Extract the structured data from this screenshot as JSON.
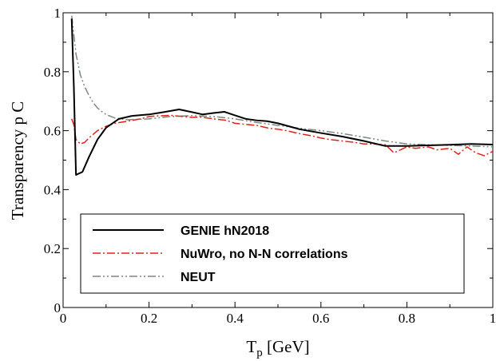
{
  "chart_data": {
    "type": "line",
    "xlabel_main": "T",
    "xlabel_sub": "p",
    "xlabel_unit": " [GeV]",
    "ylabel": "Transparency p C",
    "xlim": [
      0,
      1
    ],
    "ylim": [
      0,
      1
    ],
    "x_ticks": [
      "0",
      "0.2",
      "0.4",
      "0.6",
      "0.8",
      "1"
    ],
    "y_ticks": [
      "0",
      "0.2",
      "0.4",
      "0.6",
      "0.8",
      "1"
    ],
    "grid": false,
    "legend_position": "bottom-center",
    "series": [
      {
        "name": "GENIE hN2018",
        "color": "#000000",
        "style": "solid",
        "x": [
          0.02,
          0.025,
          0.03,
          0.045,
          0.06,
          0.08,
          0.1,
          0.13,
          0.16,
          0.2,
          0.23,
          0.27,
          0.3,
          0.325,
          0.35,
          0.375,
          0.4,
          0.425,
          0.45,
          0.475,
          0.5,
          0.55,
          0.6,
          0.65,
          0.7,
          0.75,
          0.8,
          0.85,
          0.9,
          0.95,
          1.0
        ],
        "y": [
          0.98,
          0.75,
          0.45,
          0.46,
          0.51,
          0.57,
          0.61,
          0.64,
          0.65,
          0.655,
          0.662,
          0.672,
          0.663,
          0.655,
          0.66,
          0.664,
          0.652,
          0.64,
          0.635,
          0.632,
          0.625,
          0.605,
          0.592,
          0.58,
          0.565,
          0.548,
          0.548,
          0.55,
          0.552,
          0.555,
          0.553
        ]
      },
      {
        "name": "NuWro, no N-N correlations",
        "color": "#e3211b",
        "style": "dashdot",
        "x": [
          0.02,
          0.025,
          0.03,
          0.04,
          0.05,
          0.06,
          0.08,
          0.1,
          0.12,
          0.15,
          0.18,
          0.2,
          0.22,
          0.25,
          0.28,
          0.3,
          0.32,
          0.35,
          0.38,
          0.4,
          0.42,
          0.45,
          0.48,
          0.5,
          0.52,
          0.55,
          0.58,
          0.6,
          0.62,
          0.65,
          0.68,
          0.7,
          0.72,
          0.75,
          0.77,
          0.8,
          0.82,
          0.85,
          0.87,
          0.9,
          0.92,
          0.94,
          0.96,
          0.98,
          1.0
        ],
        "y": [
          0.64,
          0.62,
          0.57,
          0.555,
          0.56,
          0.575,
          0.6,
          0.615,
          0.625,
          0.632,
          0.64,
          0.648,
          0.65,
          0.652,
          0.648,
          0.645,
          0.646,
          0.64,
          0.635,
          0.625,
          0.622,
          0.618,
          0.608,
          0.605,
          0.6,
          0.59,
          0.582,
          0.575,
          0.57,
          0.565,
          0.56,
          0.555,
          0.555,
          0.552,
          0.525,
          0.545,
          0.54,
          0.545,
          0.535,
          0.54,
          0.52,
          0.545,
          0.525,
          0.515,
          0.53
        ]
      },
      {
        "name": "NEUT",
        "color": "#7a8a7a",
        "style": "dashdotdot",
        "x": [
          0.02,
          0.03,
          0.04,
          0.05,
          0.06,
          0.07,
          0.08,
          0.09,
          0.1,
          0.12,
          0.15,
          0.2,
          0.25,
          0.3,
          0.35,
          0.4,
          0.45,
          0.5,
          0.55,
          0.6,
          0.65,
          0.7,
          0.75,
          0.8,
          0.85,
          0.9,
          0.95,
          1.0
        ],
        "y": [
          0.99,
          0.86,
          0.79,
          0.75,
          0.72,
          0.695,
          0.677,
          0.665,
          0.655,
          0.643,
          0.637,
          0.64,
          0.648,
          0.651,
          0.648,
          0.64,
          0.628,
          0.618,
          0.608,
          0.6,
          0.59,
          0.578,
          0.565,
          0.555,
          0.552,
          0.55,
          0.548,
          0.545
        ]
      }
    ]
  }
}
